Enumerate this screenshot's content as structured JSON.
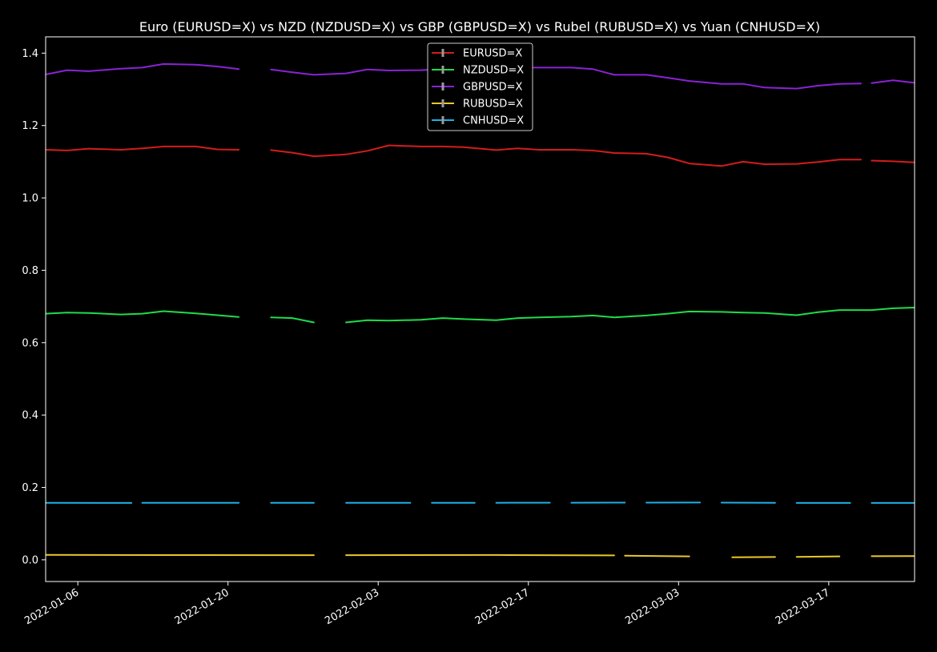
{
  "chart_data": {
    "type": "line",
    "title": "Euro (EURUSD=X) vs NZD (NZDUSD=X) vs GBP (GBPUSD=X) vs Rubel (RUBUSD=X) vs Yuan (CNHUSD=X)",
    "xlabel": "",
    "ylabel": "",
    "background": "#000000",
    "foreground": "#ffffff",
    "xlim": [
      "2022-01-03",
      "2022-03-25"
    ],
    "ylim": [
      -0.06,
      1.445
    ],
    "grid": false,
    "legend_position": "upper-center",
    "x_ticks": [
      {
        "date": "2022-01-06",
        "label": "2022-01-06"
      },
      {
        "date": "2022-01-20",
        "label": "2022-01-20"
      },
      {
        "date": "2022-02-03",
        "label": "2022-02-03"
      },
      {
        "date": "2022-02-17",
        "label": "2022-02-17"
      },
      {
        "date": "2022-03-03",
        "label": "2022-03-03"
      },
      {
        "date": "2022-03-17",
        "label": "2022-03-17"
      }
    ],
    "y_ticks": [
      {
        "value": 0.0,
        "label": "0.0"
      },
      {
        "value": 0.2,
        "label": "0.2"
      },
      {
        "value": 0.4,
        "label": "0.4"
      },
      {
        "value": 0.6,
        "label": "0.6"
      },
      {
        "value": 0.8,
        "label": "0.8"
      },
      {
        "value": 1.0,
        "label": "1.0"
      },
      {
        "value": 1.2,
        "label": "1.2"
      },
      {
        "value": 1.4,
        "label": "1.4"
      }
    ],
    "series": [
      {
        "name": "EURUSD=X",
        "color": "#d41c1c",
        "segments": [
          [
            [
              "2022-01-03",
              1.133
            ],
            [
              "2022-01-05",
              1.131
            ],
            [
              "2022-01-07",
              1.136
            ],
            [
              "2022-01-10",
              1.133
            ],
            [
              "2022-01-12",
              1.137
            ],
            [
              "2022-01-14",
              1.142
            ],
            [
              "2022-01-17",
              1.142
            ],
            [
              "2022-01-19",
              1.134
            ],
            [
              "2022-01-21",
              1.133
            ]
          ],
          [
            [
              "2022-01-24",
              1.132
            ],
            [
              "2022-01-26",
              1.125
            ],
            [
              "2022-01-28",
              1.115
            ],
            [
              "2022-01-31",
              1.12
            ],
            [
              "2022-02-02",
              1.13
            ],
            [
              "2022-02-04",
              1.145
            ],
            [
              "2022-02-07",
              1.142
            ],
            [
              "2022-02-09",
              1.142
            ],
            [
              "2022-02-11",
              1.14
            ],
            [
              "2022-02-14",
              1.132
            ],
            [
              "2022-02-16",
              1.137
            ],
            [
              "2022-02-18",
              1.133
            ],
            [
              "2022-02-21",
              1.133
            ],
            [
              "2022-02-23",
              1.131
            ],
            [
              "2022-02-25",
              1.124
            ],
            [
              "2022-02-28",
              1.122
            ],
            [
              "2022-03-02",
              1.112
            ],
            [
              "2022-03-04",
              1.095
            ],
            [
              "2022-03-07",
              1.088
            ],
            [
              "2022-03-09",
              1.1
            ],
            [
              "2022-03-11",
              1.093
            ],
            [
              "2022-03-14",
              1.094
            ],
            [
              "2022-03-16",
              1.099
            ],
            [
              "2022-03-18",
              1.106
            ],
            [
              "2022-03-20",
              1.106
            ]
          ],
          [
            [
              "2022-03-21",
              1.103
            ],
            [
              "2022-03-23",
              1.101
            ],
            [
              "2022-03-25",
              1.098
            ]
          ]
        ]
      },
      {
        "name": "NZDUSD=X",
        "color": "#1edc4c",
        "segments": [
          [
            [
              "2022-01-03",
              0.68
            ],
            [
              "2022-01-05",
              0.683
            ],
            [
              "2022-01-07",
              0.682
            ],
            [
              "2022-01-10",
              0.678
            ],
            [
              "2022-01-12",
              0.68
            ],
            [
              "2022-01-14",
              0.687
            ],
            [
              "2022-01-17",
              0.681
            ],
            [
              "2022-01-19",
              0.676
            ],
            [
              "2022-01-21",
              0.671
            ]
          ],
          [
            [
              "2022-01-24",
              0.67
            ],
            [
              "2022-01-26",
              0.668
            ],
            [
              "2022-01-28",
              0.656
            ]
          ],
          [
            [
              "2022-01-31",
              0.656
            ],
            [
              "2022-02-02",
              0.662
            ],
            [
              "2022-02-04",
              0.661
            ],
            [
              "2022-02-07",
              0.663
            ],
            [
              "2022-02-09",
              0.668
            ],
            [
              "2022-02-11",
              0.665
            ],
            [
              "2022-02-14",
              0.662
            ],
            [
              "2022-02-16",
              0.668
            ],
            [
              "2022-02-18",
              0.67
            ],
            [
              "2022-02-21",
              0.672
            ],
            [
              "2022-02-23",
              0.675
            ],
            [
              "2022-02-25",
              0.67
            ],
            [
              "2022-02-28",
              0.675
            ],
            [
              "2022-03-02",
              0.68
            ],
            [
              "2022-03-04",
              0.686
            ],
            [
              "2022-03-07",
              0.685
            ],
            [
              "2022-03-09",
              0.683
            ],
            [
              "2022-03-11",
              0.682
            ],
            [
              "2022-03-14",
              0.676
            ],
            [
              "2022-03-16",
              0.684
            ],
            [
              "2022-03-18",
              0.69
            ],
            [
              "2022-03-21",
              0.69
            ],
            [
              "2022-03-23",
              0.695
            ],
            [
              "2022-03-25",
              0.697
            ]
          ]
        ]
      },
      {
        "name": "GBPUSD=X",
        "color": "#8a22d6",
        "segments": [
          [
            [
              "2022-01-03",
              1.341
            ],
            [
              "2022-01-05",
              1.353
            ],
            [
              "2022-01-07",
              1.35
            ],
            [
              "2022-01-10",
              1.357
            ],
            [
              "2022-01-12",
              1.36
            ],
            [
              "2022-01-14",
              1.37
            ],
            [
              "2022-01-17",
              1.368
            ],
            [
              "2022-01-19",
              1.363
            ],
            [
              "2022-01-21",
              1.356
            ]
          ],
          [
            [
              "2022-01-24",
              1.355
            ],
            [
              "2022-01-26",
              1.347
            ],
            [
              "2022-01-28",
              1.34
            ],
            [
              "2022-01-31",
              1.344
            ],
            [
              "2022-02-02",
              1.355
            ],
            [
              "2022-02-04",
              1.352
            ],
            [
              "2022-02-07",
              1.353
            ],
            [
              "2022-02-09",
              1.356
            ],
            [
              "2022-02-11",
              1.356
            ],
            [
              "2022-02-14",
              1.354
            ],
            [
              "2022-02-16",
              1.36
            ],
            [
              "2022-02-18",
              1.36
            ],
            [
              "2022-02-21",
              1.36
            ],
            [
              "2022-02-23",
              1.356
            ],
            [
              "2022-02-25",
              1.34
            ],
            [
              "2022-02-28",
              1.34
            ],
            [
              "2022-03-02",
              1.332
            ],
            [
              "2022-03-04",
              1.323
            ],
            [
              "2022-03-07",
              1.315
            ],
            [
              "2022-03-09",
              1.315
            ],
            [
              "2022-03-11",
              1.305
            ],
            [
              "2022-03-14",
              1.302
            ],
            [
              "2022-03-16",
              1.31
            ],
            [
              "2022-03-18",
              1.315
            ],
            [
              "2022-03-20",
              1.316
            ]
          ],
          [
            [
              "2022-03-21",
              1.317
            ],
            [
              "2022-03-23",
              1.325
            ],
            [
              "2022-03-25",
              1.318
            ]
          ]
        ]
      },
      {
        "name": "RUBUSD=X",
        "color": "#e8c82a",
        "segments": [
          [
            [
              "2022-01-03",
              0.0135
            ],
            [
              "2022-01-14",
              0.0131
            ],
            [
              "2022-01-28",
              0.0129
            ]
          ],
          [
            [
              "2022-01-31",
              0.0129
            ],
            [
              "2022-02-14",
              0.0132
            ],
            [
              "2022-02-25",
              0.0121
            ]
          ],
          [
            [
              "2022-02-26",
              0.0115
            ],
            [
              "2022-03-04",
              0.0095
            ]
          ],
          [
            [
              "2022-03-08",
              0.007
            ],
            [
              "2022-03-12",
              0.0078
            ]
          ],
          [
            [
              "2022-03-14",
              0.0082
            ],
            [
              "2022-03-18",
              0.0096
            ]
          ],
          [
            [
              "2022-03-21",
              0.01
            ],
            [
              "2022-03-25",
              0.0102
            ]
          ]
        ]
      },
      {
        "name": "CNHUSD=X",
        "color": "#1eb0e6",
        "segments": [
          [
            [
              "2022-01-03",
              0.1573
            ],
            [
              "2022-01-11",
              0.1571
            ]
          ],
          [
            [
              "2022-01-12",
              0.1573
            ],
            [
              "2022-01-21",
              0.1575
            ]
          ],
          [
            [
              "2022-01-24",
              0.1576
            ],
            [
              "2022-01-28",
              0.1575
            ]
          ],
          [
            [
              "2022-01-31",
              0.1575
            ],
            [
              "2022-02-06",
              0.1574
            ]
          ],
          [
            [
              "2022-02-08",
              0.1573
            ],
            [
              "2022-02-12",
              0.1575
            ]
          ],
          [
            [
              "2022-02-14",
              0.1575
            ],
            [
              "2022-02-19",
              0.1577
            ]
          ],
          [
            [
              "2022-02-21",
              0.1578
            ],
            [
              "2022-02-26",
              0.158
            ]
          ],
          [
            [
              "2022-02-28",
              0.158
            ],
            [
              "2022-03-05",
              0.1582
            ]
          ],
          [
            [
              "2022-03-07",
              0.1579
            ],
            [
              "2022-03-12",
              0.1575
            ]
          ],
          [
            [
              "2022-03-14",
              0.1572
            ],
            [
              "2022-03-19",
              0.1572
            ]
          ],
          [
            [
              "2022-03-21",
              0.1572
            ],
            [
              "2022-03-25",
              0.1571
            ]
          ]
        ]
      }
    ]
  }
}
